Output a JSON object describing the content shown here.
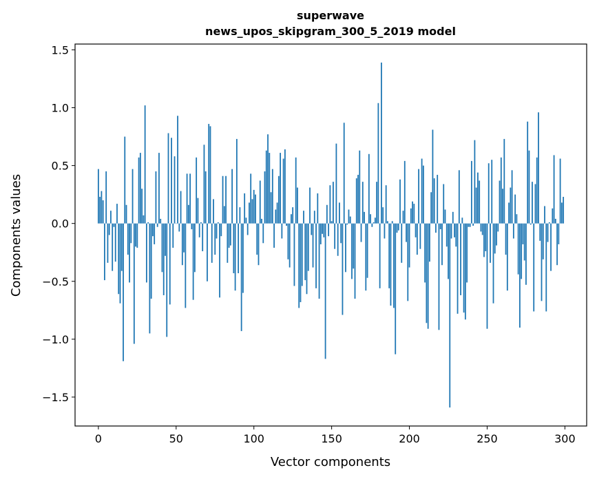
{
  "chart_data": {
    "type": "bar",
    "title": "superwave",
    "subtitle": "news_upos_skipgram_300_5_2019 model",
    "xlabel": "Vector components",
    "ylabel": "Components values",
    "xlim": [
      -15,
      314
    ],
    "ylim": [
      -1.75,
      1.55
    ],
    "xticks": [
      0,
      50,
      100,
      150,
      200,
      250,
      300
    ],
    "xtick_labels": [
      "0",
      "50",
      "100",
      "150",
      "200",
      "250",
      "300"
    ],
    "yticks": [
      -1.5,
      -1.0,
      -0.5,
      0.0,
      0.5,
      1.0,
      1.5
    ],
    "ytick_labels": [
      "−1.5",
      "−1.0",
      "−0.5",
      "0.0",
      "0.5",
      "1.0",
      "1.5"
    ],
    "grid": false,
    "color": "#1f77b4",
    "values": [
      0.47,
      0.23,
      0.28,
      0.2,
      -0.49,
      0.45,
      -0.34,
      -0.1,
      0.11,
      -0.41,
      -0.03,
      -0.33,
      0.17,
      -0.61,
      -0.69,
      -0.41,
      -1.19,
      0.75,
      0.16,
      -0.27,
      -0.51,
      -0.17,
      0.47,
      -1.04,
      -0.2,
      -0.21,
      0.57,
      0.61,
      0.3,
      0.07,
      1.02,
      -0.51,
      0.01,
      -0.95,
      -0.65,
      -0.11,
      -0.18,
      0.45,
      -0.03,
      0.61,
      0.04,
      -0.42,
      -0.62,
      -0.28,
      -0.98,
      0.78,
      -0.7,
      0.74,
      -0.21,
      0.58,
      0.0,
      0.93,
      -0.07,
      0.28,
      -0.36,
      -0.25,
      -0.73,
      0.43,
      0.16,
      0.43,
      -0.05,
      -0.66,
      -0.42,
      0.57,
      0.22,
      -0.12,
      0.01,
      -0.24,
      0.68,
      0.45,
      -0.5,
      0.86,
      0.84,
      -0.34,
      0.21,
      -0.27,
      -0.13,
      0.01,
      -0.64,
      -0.11,
      0.41,
      0.15,
      0.41,
      -0.34,
      -0.21,
      -0.19,
      0.47,
      -0.43,
      -0.58,
      0.73,
      -0.43,
      0.14,
      -0.93,
      -0.6,
      0.26,
      0.05,
      -0.1,
      0.18,
      0.43,
      0.21,
      0.29,
      0.25,
      -0.27,
      -0.36,
      0.37,
      0.04,
      -0.17,
      0.45,
      0.63,
      0.77,
      0.61,
      0.27,
      0.47,
      -0.21,
      0.12,
      0.18,
      0.41,
      0.61,
      -0.13,
      0.56,
      0.64,
      -0.02,
      -0.31,
      -0.38,
      0.08,
      0.14,
      -0.54,
      0.57,
      0.31,
      -0.73,
      -0.68,
      -0.54,
      0.11,
      -0.49,
      -0.61,
      -0.41,
      0.31,
      -0.1,
      -0.38,
      0.11,
      -0.56,
      0.26,
      -0.65,
      -0.18,
      -0.09,
      -0.12,
      -1.17,
      0.16,
      -0.11,
      0.33,
      0.02,
      0.36,
      -0.22,
      0.69,
      -0.28,
      0.18,
      -0.17,
      -0.79,
      0.87,
      -0.42,
      -0.01,
      0.12,
      0.06,
      -0.48,
      -0.39,
      -0.65,
      0.39,
      0.42,
      0.63,
      -0.16,
      0.36,
      0.1,
      -0.58,
      -0.47,
      0.6,
      0.08,
      -0.03,
      0.01,
      0.05,
      0.36,
      1.04,
      -0.56,
      1.39,
      0.14,
      -0.13,
      0.33,
      0.02,
      -0.56,
      -0.71,
      0.02,
      -0.73,
      -1.13,
      -0.08,
      -0.06,
      0.38,
      -0.34,
      0.11,
      0.54,
      -0.16,
      -0.67,
      -0.38,
      0.13,
      0.19,
      0.17,
      -0.12,
      -0.27,
      0.47,
      -0.22,
      0.56,
      0.5,
      -0.51,
      -0.86,
      -0.91,
      -0.33,
      0.27,
      0.81,
      0.39,
      -0.08,
      0.42,
      -0.92,
      -0.05,
      -0.36,
      0.34,
      0.12,
      -0.2,
      -0.48,
      -1.59,
      -0.13,
      0.1,
      -0.12,
      -0.2,
      -0.78,
      0.46,
      -0.62,
      0.05,
      -0.77,
      -0.83,
      -0.51,
      -0.03,
      -0.03,
      0.54,
      -0.02,
      0.72,
      0.31,
      0.44,
      0.37,
      -0.07,
      -0.1,
      -0.29,
      -0.24,
      -0.91,
      0.52,
      -0.34,
      0.55,
      -0.69,
      -0.26,
      -0.19,
      -0.07,
      0.37,
      0.57,
      0.3,
      0.73,
      -0.27,
      -0.58,
      0.18,
      0.31,
      0.46,
      -0.13,
      0.25,
      0.08,
      -0.44,
      -0.9,
      -0.48,
      -0.18,
      -0.32,
      -0.53,
      0.88,
      0.63,
      -0.01,
      0.36,
      -0.76,
      0.34,
      0.57,
      0.96,
      -0.15,
      -0.67,
      -0.31,
      0.15,
      -0.76,
      -0.16,
      0.01,
      -0.41,
      0.13,
      0.59,
      0.04,
      -0.36,
      -0.18,
      0.56,
      0.18,
      0.23
    ]
  }
}
